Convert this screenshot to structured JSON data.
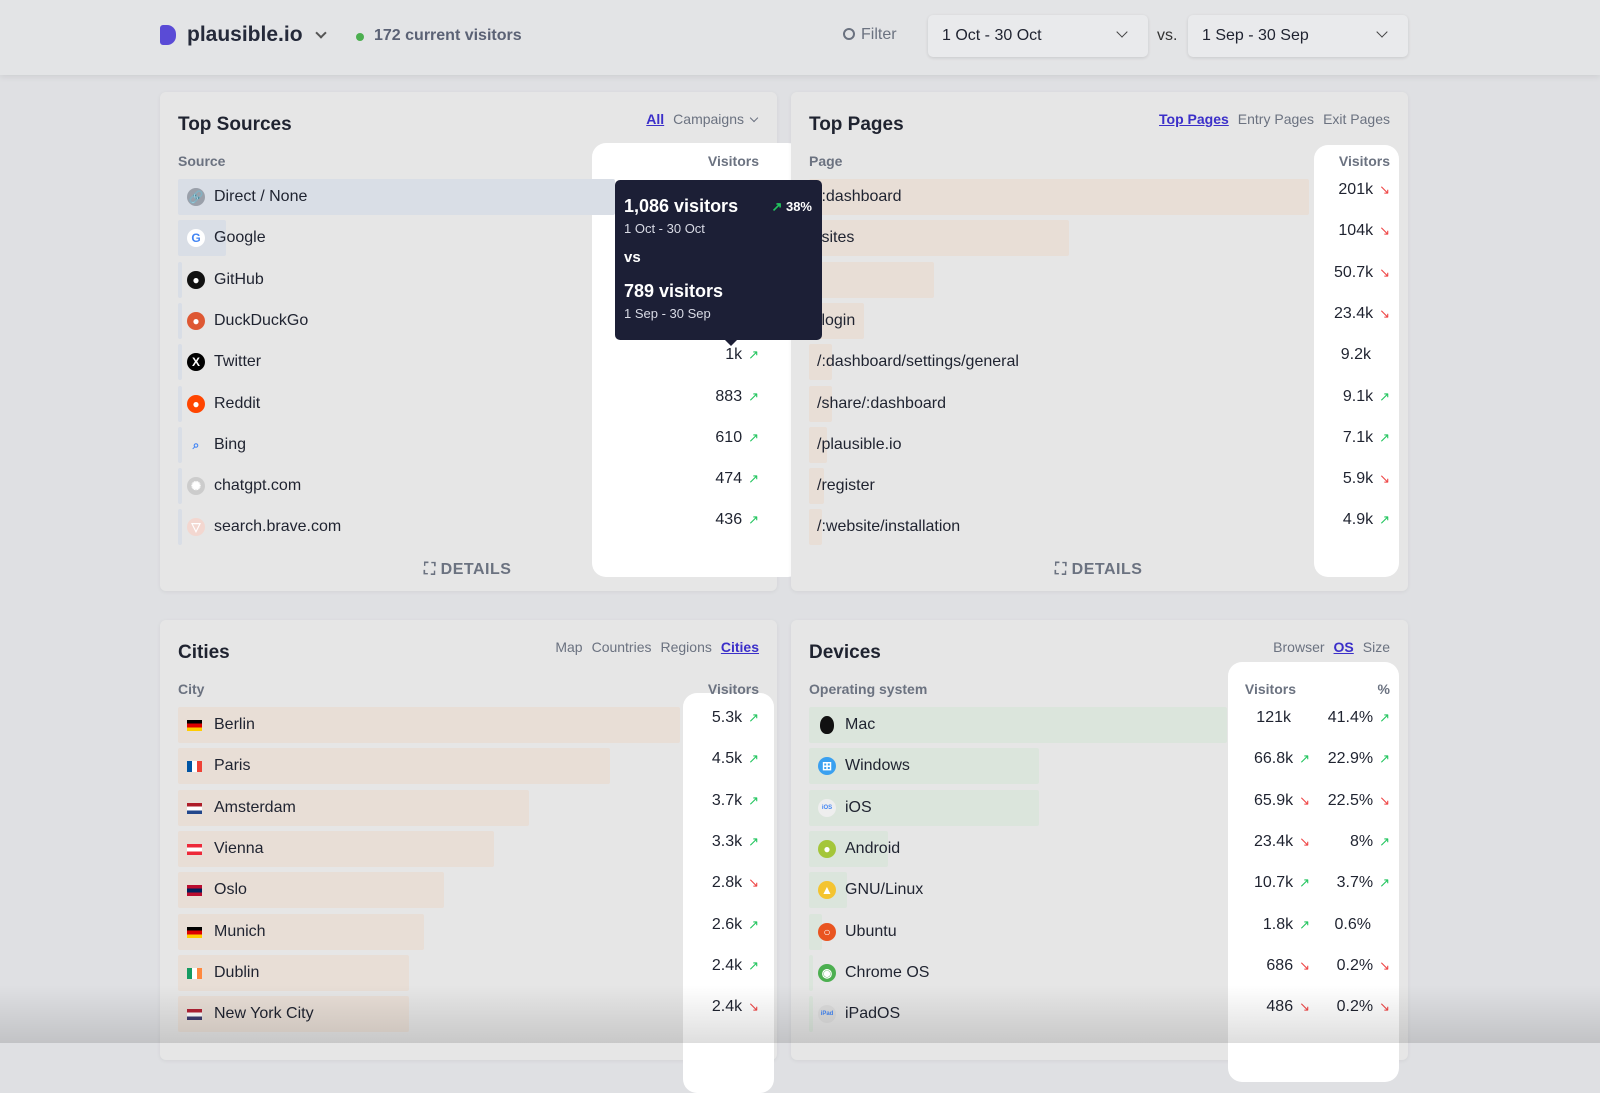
{
  "header": {
    "site": "plausible.io",
    "current_visitors": "172 current visitors",
    "filter": "Filter",
    "date_range": "1 Oct - 30 Oct",
    "vs": "vs.",
    "compare_range": "1 Sep - 30 Sep"
  },
  "colors": {
    "accent": "#3b2fc9",
    "up": "#22c55e",
    "down": "#ef4444",
    "tooltip_bg": "#1c1f36"
  },
  "sources": {
    "title": "Top Sources",
    "tabs": [
      "All",
      "Campaigns"
    ],
    "active_tab": "All",
    "col": "Source",
    "metric": "Visitors",
    "details": "DETAILS",
    "rows": [
      {
        "label": "Direct / None",
        "icon": "link-icon",
        "share": 1
      },
      {
        "label": "Google",
        "icon": "google-icon",
        "share": 0.11
      },
      {
        "label": "GitHub",
        "icon": "github-icon",
        "share": 0.01
      },
      {
        "label": "DuckDuckGo",
        "icon": "duckduckgo-icon",
        "share": 0.01
      },
      {
        "label": "Twitter",
        "icon": "x-icon",
        "value": "1k",
        "trend": "up",
        "share": 0.01
      },
      {
        "label": "Reddit",
        "icon": "reddit-icon",
        "value": "883",
        "trend": "up",
        "share": 0.01
      },
      {
        "label": "Bing",
        "icon": "bing-icon",
        "value": "610",
        "trend": "up",
        "share": 0.01
      },
      {
        "label": "chatgpt.com",
        "icon": "openai-icon",
        "value": "474",
        "trend": "up",
        "share": 0.01
      },
      {
        "label": "search.brave.com",
        "icon": "brave-icon",
        "value": "436",
        "trend": "up",
        "share": 0.01
      }
    ]
  },
  "tooltip": {
    "current": "1,086 visitors",
    "change": "38%",
    "change_trend": "up",
    "current_range": "1 Oct - 30 Oct",
    "vs": "vs",
    "previous": "789 visitors",
    "previous_range": "1 Sep - 30 Sep"
  },
  "pages": {
    "title": "Top Pages",
    "tabs": [
      "Top Pages",
      "Entry Pages",
      "Exit Pages"
    ],
    "active_tab": "Top Pages",
    "col": "Page",
    "metric": "Visitors",
    "details": "DETAILS",
    "rows": [
      {
        "label": "/:dashboard",
        "value": "201k",
        "trend": "down",
        "share": 1
      },
      {
        "label": "/sites",
        "value": "104k",
        "trend": "down",
        "share": 0.52
      },
      {
        "label": "/",
        "value": "50.7k",
        "trend": "down",
        "share": 0.25
      },
      {
        "label": "/login",
        "value": "23.4k",
        "trend": "down",
        "share": 0.11
      },
      {
        "label": "/:dashboard/settings/general",
        "value": "9.2k",
        "trend": "",
        "share": 0.045
      },
      {
        "label": "/share/:dashboard",
        "value": "9.1k",
        "trend": "up",
        "share": 0.045
      },
      {
        "label": "/plausible.io",
        "value": "7.1k",
        "trend": "up",
        "share": 0.035
      },
      {
        "label": "/register",
        "value": "5.9k",
        "trend": "down",
        "share": 0.03
      },
      {
        "label": "/:website/installation",
        "value": "4.9k",
        "trend": "up",
        "share": 0.025
      }
    ]
  },
  "cities": {
    "title": "Cities",
    "tabs": [
      "Map",
      "Countries",
      "Regions",
      "Cities"
    ],
    "active_tab": "Cities",
    "col": "City",
    "metric": "Visitors",
    "rows": [
      {
        "label": "Berlin",
        "flag": "de",
        "value": "5.3k",
        "trend": "up",
        "share": 1
      },
      {
        "label": "Paris",
        "flag": "fr",
        "value": "4.5k",
        "trend": "up",
        "share": 0.86
      },
      {
        "label": "Amsterdam",
        "flag": "nl",
        "value": "3.7k",
        "trend": "up",
        "share": 0.7
      },
      {
        "label": "Vienna",
        "flag": "at",
        "value": "3.3k",
        "trend": "up",
        "share": 0.63
      },
      {
        "label": "Oslo",
        "flag": "no",
        "value": "2.8k",
        "trend": "down",
        "share": 0.53
      },
      {
        "label": "Munich",
        "flag": "de",
        "value": "2.6k",
        "trend": "up",
        "share": 0.49
      },
      {
        "label": "Dublin",
        "flag": "ie",
        "value": "2.4k",
        "trend": "up",
        "share": 0.46
      },
      {
        "label": "New York City",
        "flag": "us",
        "value": "2.4k",
        "trend": "down",
        "share": 0.46
      }
    ]
  },
  "devices": {
    "title": "Devices",
    "tabs": [
      "Browser",
      "OS",
      "Size"
    ],
    "active_tab": "OS",
    "col": "Operating system",
    "metric": "Visitors",
    "metric2": "%",
    "rows": [
      {
        "label": "Mac",
        "icon": "apple-icon",
        "value": "121k",
        "trend": "",
        "pct": "41.4%",
        "pct_trend": "up",
        "share": 1
      },
      {
        "label": "Windows",
        "icon": "windows-icon",
        "value": "66.8k",
        "trend": "up",
        "pct": "22.9%",
        "pct_trend": "up",
        "share": 0.55
      },
      {
        "label": "iOS",
        "icon": "ios-icon",
        "value": "65.9k",
        "trend": "down",
        "pct": "22.5%",
        "pct_trend": "down",
        "share": 0.55
      },
      {
        "label": "Android",
        "icon": "android-icon",
        "value": "23.4k",
        "trend": "down",
        "pct": "8%",
        "pct_trend": "up",
        "share": 0.19
      },
      {
        "label": "GNU/Linux",
        "icon": "linux-icon",
        "value": "10.7k",
        "trend": "up",
        "pct": "3.7%",
        "pct_trend": "up",
        "share": 0.09
      },
      {
        "label": "Ubuntu",
        "icon": "ubuntu-icon",
        "value": "1.8k",
        "trend": "up",
        "pct": "0.6%",
        "pct_trend": "",
        "share": 0.03
      },
      {
        "label": "Chrome OS",
        "icon": "chrome-icon",
        "value": "686",
        "trend": "down",
        "pct": "0.2%",
        "pct_trend": "down",
        "share": 0.01
      },
      {
        "label": "iPadOS",
        "icon": "ipados-icon",
        "value": "486",
        "trend": "down",
        "pct": "0.2%",
        "pct_trend": "down",
        "share": 0.01
      }
    ]
  }
}
